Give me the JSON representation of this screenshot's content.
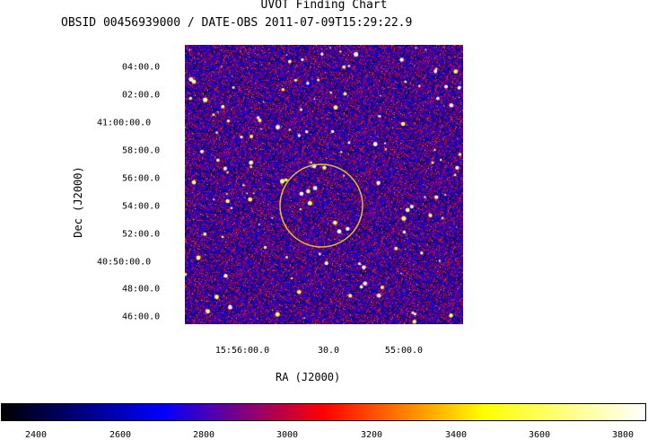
{
  "header": {
    "title": "UVOT Finding Chart",
    "subtitle": "OBSID 00456939000 / DATE-OBS 2011-07-09T15:29:22.9"
  },
  "axes": {
    "xlabel": "RA (J2000)",
    "ylabel": "Dec (J2000)",
    "ra_ticks": [
      "15:56:00.0",
      "30.0",
      "55:00.0"
    ],
    "dec_ticks": [
      "04:00.0",
      "02:00.0",
      "41:00:00.0",
      "58:00.0",
      "56:00.0",
      "54:00.0",
      "52:00.0",
      "40:50:00.0",
      "48:00.0",
      "46:00.0"
    ]
  },
  "colorbar": {
    "ticks": [
      "2400",
      "2600",
      "2800",
      "3000",
      "3200",
      "3400",
      "3600",
      "3800"
    ],
    "colors": [
      "#000000",
      "#0000ff",
      "#ff0000",
      "#ffff00",
      "#ffffff"
    ]
  },
  "marker": {
    "shape": "circle",
    "color": "#e8c020"
  }
}
